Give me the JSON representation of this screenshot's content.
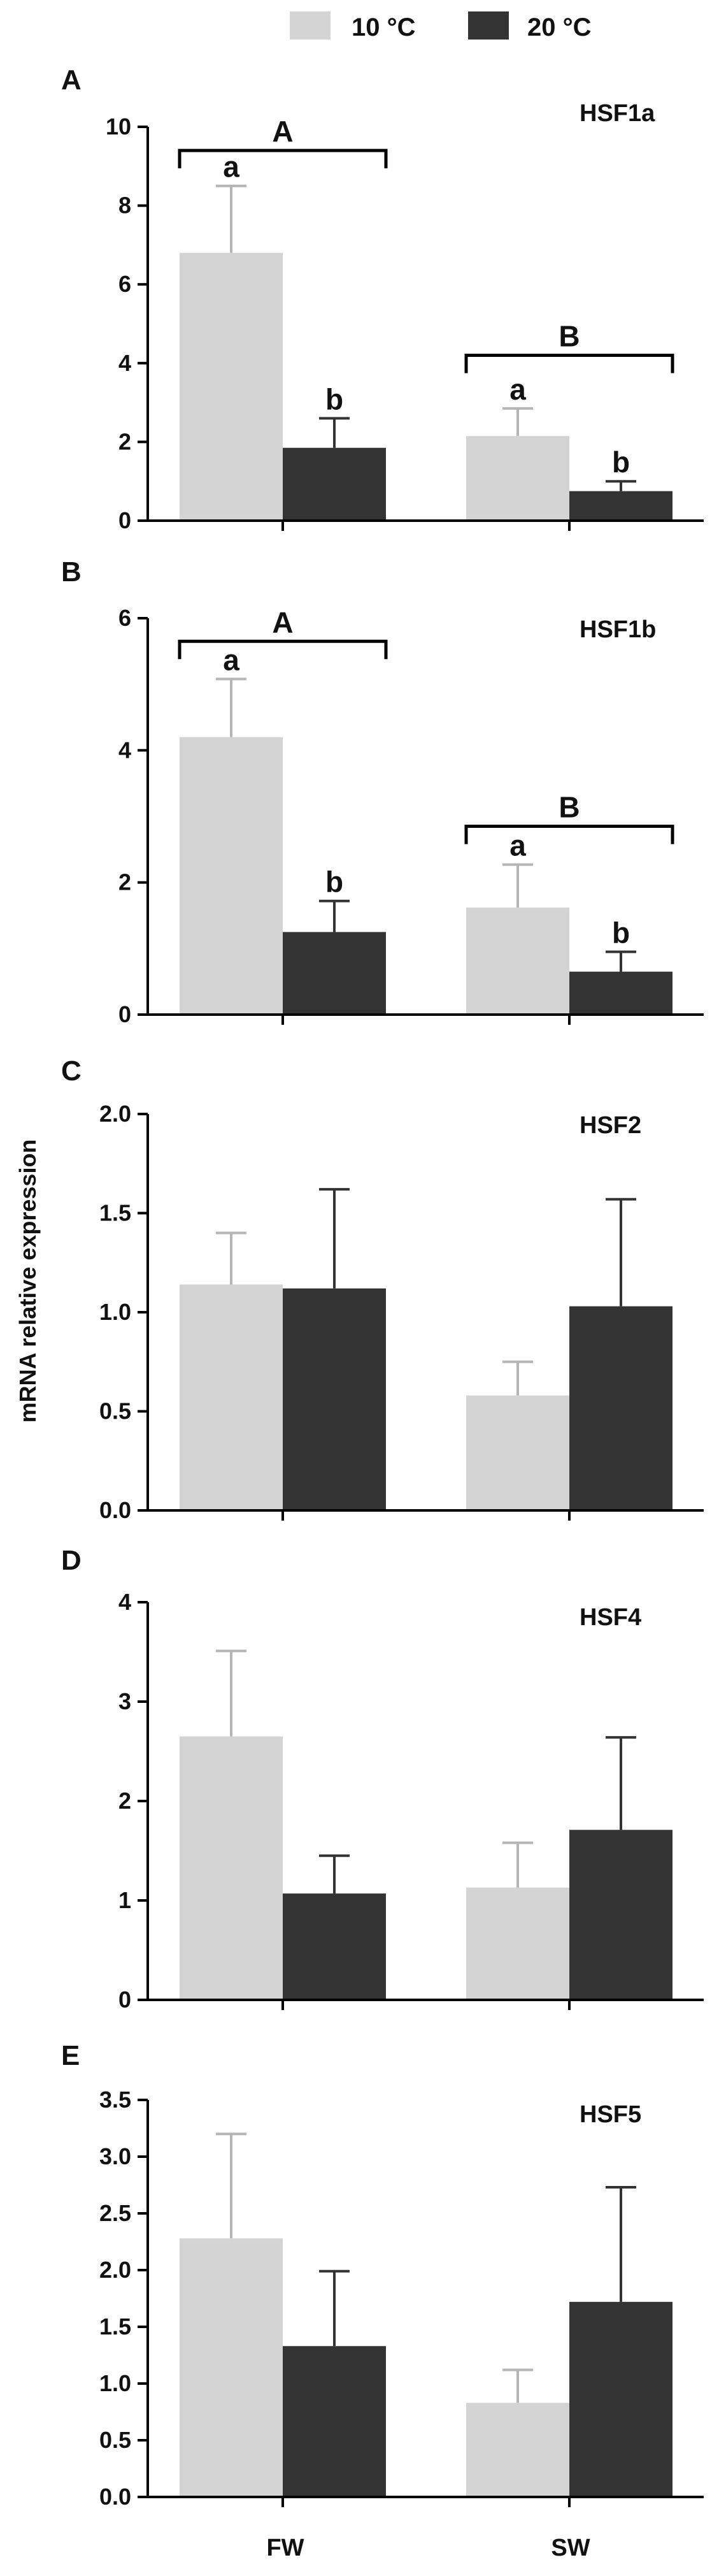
{
  "legend": {
    "entries": [
      {
        "label": "10 °C",
        "color": "#d4d4d4"
      },
      {
        "label": "20 °C",
        "color": "#333333"
      }
    ]
  },
  "ylabel": "mRNA relative expression",
  "categories": [
    "FW",
    "SW"
  ],
  "chart_data": [
    {
      "type": "bar",
      "panel": "A",
      "gene": "HSF1a",
      "categories": [
        "FW",
        "SW"
      ],
      "ylim": [
        0,
        10
      ],
      "yticks": [
        0,
        2,
        4,
        6,
        8,
        10
      ],
      "ytick_labels": [
        "0",
        "2",
        "4",
        "6",
        "8",
        "10"
      ],
      "series": [
        {
          "name": "10 °C",
          "values": [
            6.8,
            2.15
          ],
          "errors": [
            1.7,
            0.7
          ]
        },
        {
          "name": "20 °C",
          "values": [
            1.85,
            0.75
          ],
          "errors": [
            0.75,
            0.25
          ]
        }
      ],
      "sig_letters": {
        "10 °C": [
          "a",
          "a"
        ],
        "20 °C": [
          "b",
          "b"
        ]
      },
      "group_letters": [
        "A",
        "B"
      ],
      "group_bracket_y": [
        9.4,
        4.2
      ]
    },
    {
      "type": "bar",
      "panel": "B",
      "gene": "HSF1b",
      "categories": [
        "FW",
        "SW"
      ],
      "ylim": [
        0,
        6
      ],
      "yticks": [
        0,
        2,
        4,
        6
      ],
      "ytick_labels": [
        "0",
        "2",
        "4",
        "6"
      ],
      "series": [
        {
          "name": "10 °C",
          "values": [
            4.2,
            1.62
          ],
          "errors": [
            0.88,
            0.65
          ]
        },
        {
          "name": "20 °C",
          "values": [
            1.25,
            0.65
          ],
          "errors": [
            0.47,
            0.3
          ]
        }
      ],
      "sig_letters": {
        "10 °C": [
          "a",
          "a"
        ],
        "20 °C": [
          "b",
          "b"
        ]
      },
      "group_letters": [
        "A",
        "B"
      ],
      "group_bracket_y": [
        5.65,
        2.85
      ]
    },
    {
      "type": "bar",
      "panel": "C",
      "gene": "HSF2",
      "categories": [
        "FW",
        "SW"
      ],
      "ylim": [
        0,
        2.0
      ],
      "yticks": [
        0,
        0.5,
        1.0,
        1.5,
        2.0
      ],
      "ytick_labels": [
        "0.0",
        "0.5",
        "1.0",
        "1.5",
        "2.0"
      ],
      "series": [
        {
          "name": "10 °C",
          "values": [
            1.14,
            0.58
          ],
          "errors": [
            0.26,
            0.17
          ]
        },
        {
          "name": "20 °C",
          "values": [
            1.12,
            1.03
          ],
          "errors": [
            0.5,
            0.54
          ]
        }
      ]
    },
    {
      "type": "bar",
      "panel": "D",
      "gene": "HSF4",
      "categories": [
        "FW",
        "SW"
      ],
      "ylim": [
        0,
        4
      ],
      "yticks": [
        0,
        1,
        2,
        3,
        4
      ],
      "ytick_labels": [
        "0",
        "1",
        "2",
        "3",
        "4"
      ],
      "series": [
        {
          "name": "10 °C",
          "values": [
            2.65,
            1.13
          ],
          "errors": [
            0.86,
            0.45
          ]
        },
        {
          "name": "20 °C",
          "values": [
            1.07,
            1.71
          ],
          "errors": [
            0.38,
            0.93
          ]
        }
      ]
    },
    {
      "type": "bar",
      "panel": "E",
      "gene": "HSF5",
      "categories": [
        "FW",
        "SW"
      ],
      "ylim": [
        0,
        3.5
      ],
      "yticks": [
        0,
        0.5,
        1.0,
        1.5,
        2.0,
        2.5,
        3.0,
        3.5
      ],
      "ytick_labels": [
        "0.0",
        "0.5",
        "1.0",
        "1.5",
        "2.0",
        "2.5",
        "3.0",
        "3.5"
      ],
      "series": [
        {
          "name": "10 °C",
          "values": [
            2.28,
            0.83
          ],
          "errors": [
            0.92,
            0.29
          ]
        },
        {
          "name": "20 °C",
          "values": [
            1.33,
            1.72
          ],
          "errors": [
            0.66,
            1.01
          ]
        }
      ]
    }
  ]
}
